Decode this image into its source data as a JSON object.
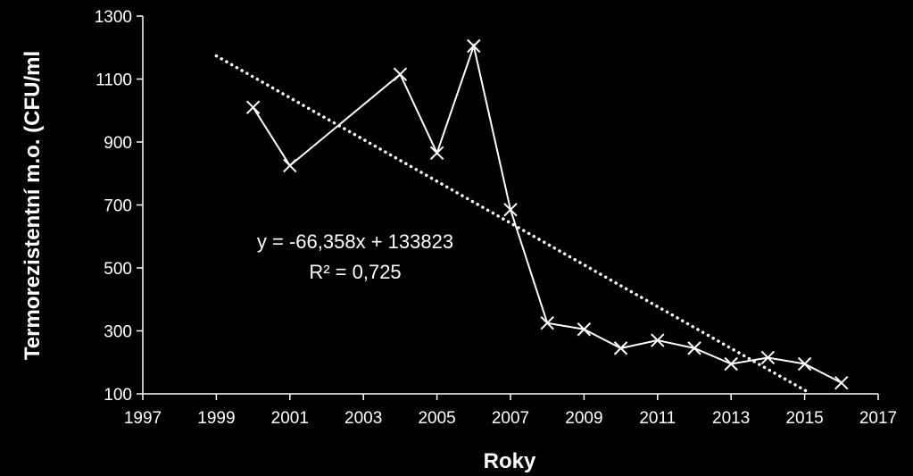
{
  "chart_data": {
    "type": "scatter",
    "xlabel": "Roky",
    "ylabel": "Termorezistentní m.o.  (CFU/ml",
    "xlim": [
      1997,
      2017
    ],
    "ylim": [
      100,
      1300
    ],
    "x_ticks": [
      1997,
      1999,
      2001,
      2003,
      2005,
      2007,
      2009,
      2011,
      2013,
      2015,
      2017
    ],
    "y_ticks": [
      100,
      300,
      500,
      700,
      900,
      1100,
      1300
    ],
    "grid": false,
    "legend": "none",
    "colors": {
      "background": "#000000",
      "series": "#ffffff",
      "text": "#ffffff"
    },
    "series": [
      {
        "marker": "x",
        "line": "solid",
        "x": [
          2000,
          2001,
          2004,
          2005,
          2006,
          2007,
          2008,
          2009,
          2010,
          2011,
          2012,
          2013,
          2014,
          2015,
          2016
        ],
        "y": [
          1010,
          825,
          1115,
          865,
          1205,
          685,
          325,
          305,
          245,
          270,
          245,
          195,
          215,
          195,
          135
        ]
      }
    ],
    "trendline": {
      "style": "dotted",
      "slope": -66.358,
      "intercept": 133823,
      "x_range": [
        1999,
        2015.05
      ]
    },
    "annotations": {
      "equation": "y = -66,358x + 133823",
      "r_squared": "R² = 0,725"
    }
  }
}
